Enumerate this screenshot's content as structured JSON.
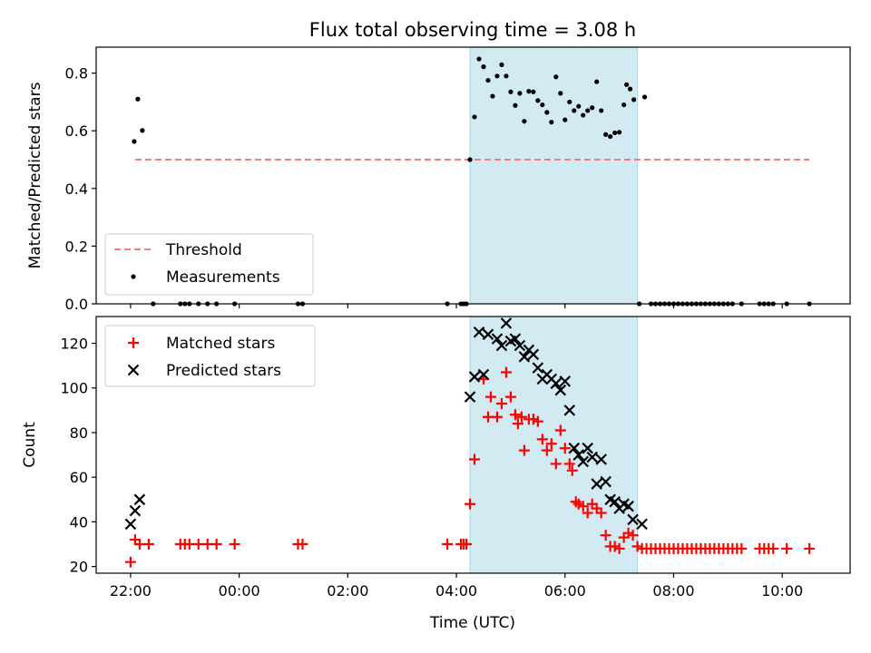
{
  "figure": {
    "title": "Flux total observing time = 3.08 h",
    "xlabel": "Time (UTC)",
    "x_ticks": [
      "22:00",
      "00:00",
      "02:00",
      "04:00",
      "06:00",
      "08:00",
      "10:00"
    ],
    "highlight_window": {
      "start": "04:15",
      "end": "07:20",
      "color": "#add8e6"
    }
  },
  "chart_data": [
    {
      "type": "scatter",
      "title": "Flux total observing time = 3.08 h",
      "xlabel": "",
      "ylabel": "Matched/Predicted stars",
      "xlim": [
        "21:22",
        "11:15"
      ],
      "ylim": [
        0,
        0.89
      ],
      "y_ticks": [
        "0.0",
        "0.2",
        "0.4",
        "0.6",
        "0.8"
      ],
      "legend": {
        "placement": "lower-left",
        "entries": [
          "Threshold",
          "Measurements"
        ]
      },
      "series": [
        {
          "name": "Threshold",
          "style": "dashed-line",
          "color": "#f08080",
          "points": [
            [
              "22:05",
              0.5
            ],
            [
              "10:30",
              0.5
            ]
          ]
        },
        {
          "name": "Measurements",
          "style": "dot",
          "color": "#000000",
          "points": [
            [
              "22:04",
              0.563
            ],
            [
              "22:08",
              0.71
            ],
            [
              "22:13",
              0.601
            ],
            [
              "22:25",
              0.0
            ],
            [
              "22:55",
              0.0
            ],
            [
              "23:00",
              0.0
            ],
            [
              "23:05",
              0.0
            ],
            [
              "23:15",
              0.0
            ],
            [
              "23:25",
              0.0
            ],
            [
              "23:35",
              0.0
            ],
            [
              "23:55",
              0.0
            ],
            [
              "01:05",
              0.0
            ],
            [
              "01:10",
              0.0
            ],
            [
              "03:50",
              0.0
            ],
            [
              "04:05",
              0.0
            ],
            [
              "04:08",
              0.0
            ],
            [
              "04:11",
              0.0
            ],
            [
              "04:15",
              0.5
            ],
            [
              "04:20",
              0.648
            ],
            [
              "04:25",
              0.849
            ],
            [
              "04:30",
              0.822
            ],
            [
              "04:35",
              0.775
            ],
            [
              "04:40",
              0.72
            ],
            [
              "04:45",
              0.79
            ],
            [
              "04:50",
              0.829
            ],
            [
              "04:55",
              0.79
            ],
            [
              "05:00",
              0.735
            ],
            [
              "05:05",
              0.688
            ],
            [
              "05:10",
              0.73
            ],
            [
              "05:15",
              0.633
            ],
            [
              "05:20",
              0.737
            ],
            [
              "05:25",
              0.735
            ],
            [
              "05:30",
              0.705
            ],
            [
              "05:35",
              0.69
            ],
            [
              "05:40",
              0.664
            ],
            [
              "05:45",
              0.63
            ],
            [
              "05:50",
              0.787
            ],
            [
              "05:55",
              0.73
            ],
            [
              "06:00",
              0.638
            ],
            [
              "06:05",
              0.7
            ],
            [
              "06:10",
              0.67
            ],
            [
              "06:15",
              0.685
            ],
            [
              "06:20",
              0.654
            ],
            [
              "06:25",
              0.67
            ],
            [
              "06:30",
              0.68
            ],
            [
              "06:35",
              0.77
            ],
            [
              "06:40",
              0.67
            ],
            [
              "06:45",
              0.587
            ],
            [
              "06:50",
              0.58
            ],
            [
              "06:55",
              0.593
            ],
            [
              "07:00",
              0.595
            ],
            [
              "07:05",
              0.69
            ],
            [
              "07:08",
              0.76
            ],
            [
              "07:12",
              0.745
            ],
            [
              "07:16",
              0.708
            ],
            [
              "07:28",
              0.717
            ],
            [
              "07:22",
              0.0
            ],
            [
              "07:35",
              0.0
            ],
            [
              "07:40",
              0.0
            ],
            [
              "07:45",
              0.0
            ],
            [
              "07:50",
              0.0
            ],
            [
              "07:55",
              0.0
            ],
            [
              "08:00",
              0.0
            ],
            [
              "08:05",
              0.0
            ],
            [
              "08:10",
              0.0
            ],
            [
              "08:15",
              0.0
            ],
            [
              "08:20",
              0.0
            ],
            [
              "08:25",
              0.0
            ],
            [
              "08:30",
              0.0
            ],
            [
              "08:35",
              0.0
            ],
            [
              "08:40",
              0.0
            ],
            [
              "08:45",
              0.0
            ],
            [
              "08:50",
              0.0
            ],
            [
              "08:55",
              0.0
            ],
            [
              "09:00",
              0.0
            ],
            [
              "09:05",
              0.0
            ],
            [
              "09:15",
              0.0
            ],
            [
              "09:35",
              0.0
            ],
            [
              "09:40",
              0.0
            ],
            [
              "09:45",
              0.0
            ],
            [
              "09:50",
              0.0
            ],
            [
              "10:05",
              0.0
            ],
            [
              "10:30",
              0.0
            ]
          ]
        }
      ]
    },
    {
      "type": "scatter",
      "title": "",
      "xlabel": "Time (UTC)",
      "ylabel": "Count",
      "xlim": [
        "21:22",
        "11:15"
      ],
      "ylim": [
        17,
        132
      ],
      "y_ticks": [
        "20",
        "40",
        "60",
        "80",
        "100",
        "120"
      ],
      "legend": {
        "placement": "upper-left",
        "entries": [
          "Matched stars",
          "Predicted stars"
        ]
      },
      "series": [
        {
          "name": "Matched stars",
          "style": "plus",
          "color": "#ff0000",
          "points": [
            [
              "22:00",
              22
            ],
            [
              "22:05",
              32
            ],
            [
              "22:10",
              30
            ],
            [
              "22:20",
              30
            ],
            [
              "22:55",
              30
            ],
            [
              "23:00",
              30
            ],
            [
              "23:05",
              30
            ],
            [
              "23:15",
              30
            ],
            [
              "23:25",
              30
            ],
            [
              "23:35",
              30
            ],
            [
              "23:55",
              30
            ],
            [
              "01:05",
              30
            ],
            [
              "01:10",
              30
            ],
            [
              "03:50",
              30
            ],
            [
              "04:05",
              30
            ],
            [
              "04:08",
              30
            ],
            [
              "04:11",
              30
            ],
            [
              "04:15",
              48
            ],
            [
              "04:20",
              68
            ],
            [
              "04:30",
              104
            ],
            [
              "04:35",
              87
            ],
            [
              "04:38",
              96
            ],
            [
              "04:45",
              87
            ],
            [
              "04:50",
              93
            ],
            [
              "04:55",
              107
            ],
            [
              "05:00",
              96
            ],
            [
              "05:05",
              88
            ],
            [
              "05:08",
              84
            ],
            [
              "05:12",
              87
            ],
            [
              "05:15",
              72
            ],
            [
              "05:20",
              86
            ],
            [
              "05:25",
              86
            ],
            [
              "05:30",
              85
            ],
            [
              "05:35",
              77
            ],
            [
              "05:40",
              72
            ],
            [
              "05:45",
              75
            ],
            [
              "05:50",
              66
            ],
            [
              "05:55",
              81
            ],
            [
              "06:00",
              73
            ],
            [
              "06:05",
              66
            ],
            [
              "06:08",
              63
            ],
            [
              "06:12",
              49
            ],
            [
              "06:15",
              48
            ],
            [
              "06:20",
              47
            ],
            [
              "06:25",
              44
            ],
            [
              "06:30",
              48
            ],
            [
              "06:35",
              46
            ],
            [
              "06:40",
              44
            ],
            [
              "06:45",
              34
            ],
            [
              "06:50",
              29
            ],
            [
              "06:55",
              29
            ],
            [
              "07:00",
              28
            ],
            [
              "07:05",
              33
            ],
            [
              "07:10",
              35
            ],
            [
              "07:15",
              34
            ],
            [
              "07:20",
              29
            ],
            [
              "07:25",
              28
            ],
            [
              "07:30",
              28
            ],
            [
              "07:35",
              28
            ],
            [
              "07:40",
              28
            ],
            [
              "07:45",
              28
            ],
            [
              "07:50",
              28
            ],
            [
              "07:55",
              28
            ],
            [
              "08:00",
              28
            ],
            [
              "08:05",
              28
            ],
            [
              "08:10",
              28
            ],
            [
              "08:15",
              28
            ],
            [
              "08:20",
              28
            ],
            [
              "08:25",
              28
            ],
            [
              "08:30",
              28
            ],
            [
              "08:35",
              28
            ],
            [
              "08:40",
              28
            ],
            [
              "08:45",
              28
            ],
            [
              "08:50",
              28
            ],
            [
              "08:55",
              28
            ],
            [
              "09:00",
              28
            ],
            [
              "09:05",
              28
            ],
            [
              "09:10",
              28
            ],
            [
              "09:15",
              28
            ],
            [
              "09:35",
              28
            ],
            [
              "09:40",
              28
            ],
            [
              "09:45",
              28
            ],
            [
              "09:50",
              28
            ],
            [
              "10:05",
              28
            ],
            [
              "10:30",
              28
            ]
          ]
        },
        {
          "name": "Predicted stars",
          "style": "x",
          "color": "#000000",
          "points": [
            [
              "22:00",
              39
            ],
            [
              "22:05",
              45
            ],
            [
              "22:10",
              50
            ],
            [
              "04:15",
              96
            ],
            [
              "04:20",
              105
            ],
            [
              "04:25",
              125
            ],
            [
              "04:30",
              106
            ],
            [
              "04:35",
              124
            ],
            [
              "04:45",
              122
            ],
            [
              "04:50",
              119
            ],
            [
              "04:55",
              129
            ],
            [
              "05:00",
              121
            ],
            [
              "05:05",
              122
            ],
            [
              "05:10",
              119
            ],
            [
              "05:15",
              114
            ],
            [
              "05:20",
              117
            ],
            [
              "05:25",
              115
            ],
            [
              "05:30",
              109
            ],
            [
              "05:35",
              104
            ],
            [
              "05:40",
              106
            ],
            [
              "05:45",
              104
            ],
            [
              "05:50",
              102
            ],
            [
              "05:55",
              99
            ],
            [
              "06:00",
              103
            ],
            [
              "06:05",
              90
            ],
            [
              "06:10",
              73
            ],
            [
              "06:15",
              70
            ],
            [
              "06:20",
              67
            ],
            [
              "06:25",
              73
            ],
            [
              "06:30",
              69
            ],
            [
              "06:35",
              57
            ],
            [
              "06:40",
              68
            ],
            [
              "06:45",
              58
            ],
            [
              "06:50",
              50
            ],
            [
              "06:55",
              49
            ],
            [
              "07:00",
              46
            ],
            [
              "07:05",
              48
            ],
            [
              "07:10",
              47
            ],
            [
              "07:15",
              41
            ],
            [
              "07:25",
              39
            ]
          ]
        }
      ]
    }
  ]
}
